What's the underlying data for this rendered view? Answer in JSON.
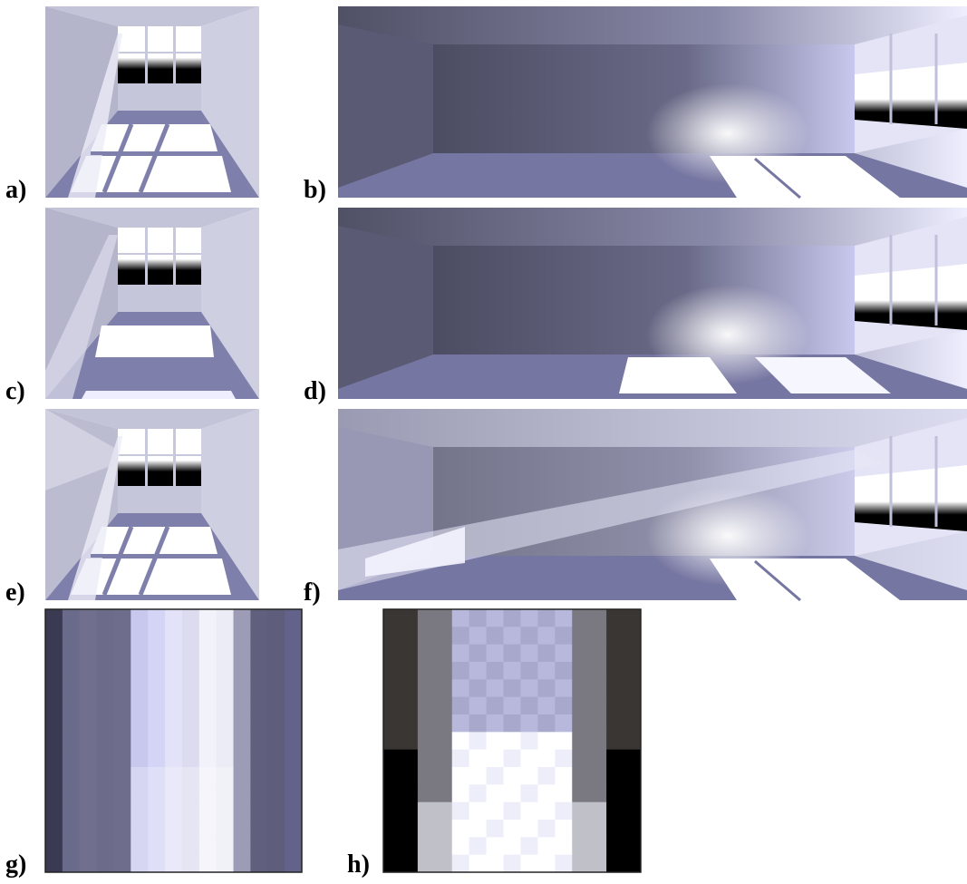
{
  "panels": [
    {
      "label": "a)"
    },
    {
      "label": "b)"
    },
    {
      "label": "c)"
    },
    {
      "label": "d)"
    },
    {
      "label": "e)"
    },
    {
      "label": "f)"
    },
    {
      "label": "g)"
    },
    {
      "label": "h)"
    }
  ]
}
